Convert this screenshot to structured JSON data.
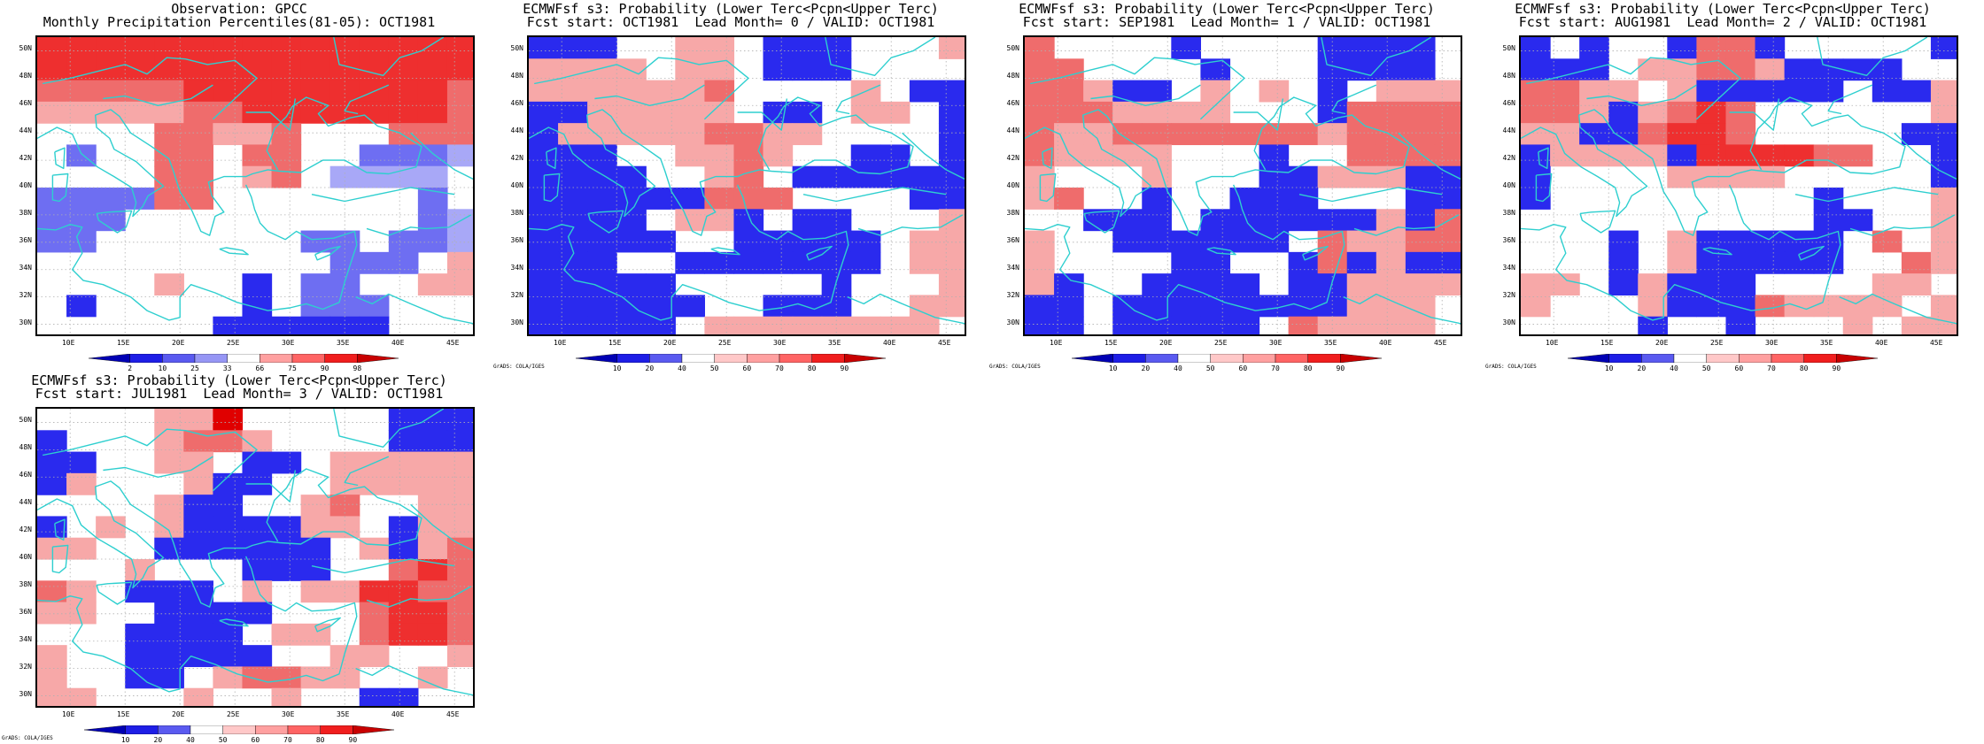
{
  "lat_labels": [
    "50N",
    "48N",
    "46N",
    "44N",
    "42N",
    "40N",
    "38N",
    "36N",
    "34N",
    "32N",
    "30N"
  ],
  "lon_labels": [
    "10E",
    "15E",
    "20E",
    "25E",
    "30E",
    "35E",
    "40E",
    "45E"
  ],
  "colorbars": {
    "observation": {
      "labels": [
        "2",
        "10",
        "25",
        "33",
        "66",
        "75",
        "90",
        "98"
      ],
      "colors": [
        "#0000b4",
        "#1e1ee6",
        "#5a5af0",
        "#9696f5",
        "#ffffff",
        "#ffa0a0",
        "#ff6464",
        "#f01e1e",
        "#c80000"
      ]
    },
    "probability": {
      "labels": [
        "10",
        "20",
        "40",
        "50",
        "60",
        "70",
        "80",
        "90"
      ],
      "colors": [
        "#0000b4",
        "#1e1ee6",
        "#5a5af0",
        "#ffffff",
        "#ffc8c8",
        "#ffa0a0",
        "#ff6464",
        "#f01e1e",
        "#c80000"
      ]
    }
  },
  "credit": "GrADS: COLA/IGES",
  "palette": {
    "B": "#2a2aee",
    "b": "#6e6ef2",
    "l": "#a8a8f7",
    "p": "#f7a8a8",
    "r": "#ef6c6c",
    "R": "#ee2f2f",
    "D": "#e00000",
    "coast": "#2ecfcf",
    "grid": "#b0b0b0"
  },
  "panels": [
    {
      "id": "obs",
      "title1": "Observation: GPCC",
      "title2": "Monthly Precipitation Percentiles(81-05): OCT1981",
      "colorbar": "observation",
      "credit": false,
      "grid": [
        "RRRRRRRRRRRRRRR",
        "RRRRRRRRRRRRRRR",
        "rrrrrRRRRRRRRRr",
        "ppppprrRRRRRRRr",
        "....rrppr...rrr",
        ".b..rr.rr..bbbl",
        "....rr.pr.llll.",
        "bbbbrr.......b.",
        "bbb..........bl",
        "bb.......bb.bbl",
        "..........bbb.p",
        "....p..B.bb..pp",
        ".B.....B.bbb...",
        "......BBBBBB..."
      ]
    },
    {
      "id": "lead0",
      "title1": "ECMWFsf s3: Probability (Lower Terc<Pcpn<Upper Terc)",
      "title2": "Fcst start: OCT1981  Lead Month= 0 / VALID: OCT1981",
      "colorbar": "probability",
      "credit": true,
      "grid": [
        "BBB..pp.BBB...p",
        "pppp.pp.BBB....",
        "ppppppr....p.BB",
        "BBppppp.BB.pp.B",
        "Bppppprrpp....B",
        "BBB..pprp..BB.B",
        "BBBB..pr.BBBBBB",
        "BBBBBBrrr....BB",
        "BBBB.ppB.BB...p",
        "BBBBB..BBBBB.pp",
        "BBB..BBBBBBB.pp",
        "BBBBB.....B...p",
        "BBBBBB..BBB..pp",
        "BBBBB.pppppppp."
      ]
    },
    {
      "id": "lead1",
      "title1": "ECMWFsf s3: Probability (Lower Terc<Pcpn<Upper Terc)",
      "title2": "Fcst start: SEP1981  Lead Month= 1 / VALID: OCT1981",
      "colorbar": "probability",
      "credit": true,
      "grid": [
        "r....B....BBBB.",
        "rr....B...BBBB.",
        "rrpBB.p.p.B.ppp",
        "rrrpppp...Brrrr",
        "rpprrrrrrrprrrr",
        "rpppp...B..rrrr",
        "p...p...BBpppBB",
        "pr..B..BBB...BB",
        "..BBB.BBBBBBpBr",
        "p..BBBBBB.rpprr",
        "p....BB..BrBpBB",
        "pB..BBBB.BBpppp",
        "BB.BBBBBBBBppp.",
        "BB.BBBBB.rpppp."
      ]
    },
    {
      "id": "lead2",
      "title1": "ECMWFsf s3: Probability (Lower Terc<Pcpn<Upper Terc)",
      "title2": "Fcst start: AUG1981  Lead Month= 2 / VALID: OCT1981",
      "colorbar": "probability",
      "credit": true,
      "grid": [
        "B.B..BrrB.....B",
        "BBB.pprrpBBBB..",
        "rrpp.pBBBBB.BBp",
        "rrpBprRr......p",
        "ppBBrRRr.....BB",
        "BppppBRRRRrr..B",
        "B....pppp.....B",
        "B.........B...p",
        "..........BB..p",
        "...B.pBBBBB.r.p",
        "...B.pBBBBB..rp",
        "pp.BpBBB....pp.",
        "p...pBBBrpppp.p",
        "....B..B...p.pp"
      ]
    },
    {
      "id": "lead3",
      "title1": "ECMWFsf s3: Probability (Lower Terc<Pcpn<Upper Terc)",
      "title2": "Fcst start: JUL1981  Lead Month= 3 / VALID: OCT1981",
      "colorbar": "probability",
      "credit": true,
      "grid": [
        "....ppD.....BBB",
        "B...prrp....BBB",
        "BB..pp.BB.ppppp",
        "Bp...pBB..ppppp",
        "....pBB..pr..pp",
        "B.p.pBBBBpp.Bpp",
        "pp..BBBBBB.pBpr",
        "...p...BBB..rRr",
        "rp.BBB.p.ppRRrr",
        "pp..BBBB...rRRr",
        "...BBBB.pp.rRRr",
        "p..BBBBB..pp..p",
        "p..BB.prrpp..p.",
        "pp...p..p..BB.."
      ]
    }
  ]
}
